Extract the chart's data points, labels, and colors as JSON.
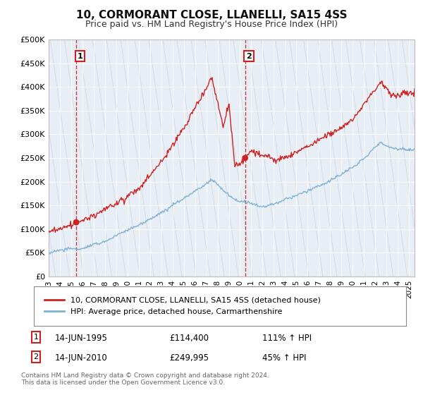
{
  "title": "10, CORMORANT CLOSE, LLANELLI, SA15 4SS",
  "subtitle": "Price paid vs. HM Land Registry's House Price Index (HPI)",
  "legend_label_red": "10, CORMORANT CLOSE, LLANELLI, SA15 4SS (detached house)",
  "legend_label_blue": "HPI: Average price, detached house, Carmarthenshire",
  "annotation1_label": "1",
  "annotation1_date": "14-JUN-1995",
  "annotation1_price": "£114,400",
  "annotation1_hpi": "111% ↑ HPI",
  "annotation1_year": 1995.45,
  "annotation1_value": 114400,
  "annotation2_label": "2",
  "annotation2_date": "14-JUN-2010",
  "annotation2_price": "£249,995",
  "annotation2_hpi": "45% ↑ HPI",
  "annotation2_year": 2010.45,
  "annotation2_value": 249995,
  "footer": "Contains HM Land Registry data © Crown copyright and database right 2024.\nThis data is licensed under the Open Government Licence v3.0.",
  "ylim": [
    0,
    500000
  ],
  "xlim_start": 1993,
  "xlim_end": 2025.5,
  "red_color": "#cc2222",
  "blue_color": "#7fb3d3",
  "background_color": "#ffffff",
  "plot_bg_color": "#e8eef5",
  "grid_color": "#ffffff",
  "hatch_color": "#d0d8e0"
}
